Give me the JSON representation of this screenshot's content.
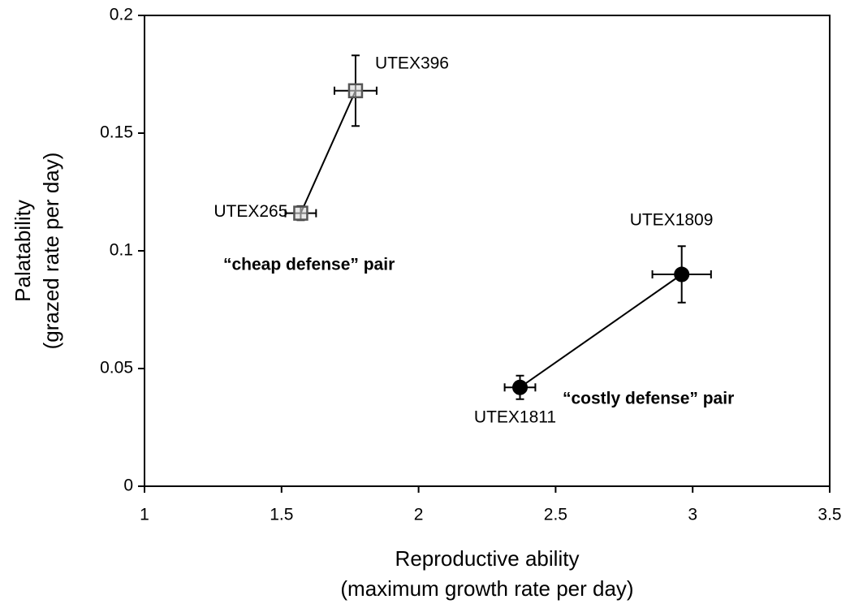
{
  "chart_data": {
    "type": "scatter",
    "xlabel": [
      "Reproductive ability",
      "(maximum growth rate per day)"
    ],
    "ylabel": [
      "Palatability",
      "(grazed rate per day)"
    ],
    "xlim": [
      1,
      3.5
    ],
    "ylim": [
      0,
      0.2
    ],
    "xticks": [
      1,
      1.5,
      2,
      2.5,
      3,
      3.5
    ],
    "yticks": [
      0,
      0.05,
      0.1,
      0.15,
      0.2
    ],
    "grid": false,
    "annotations": [
      "“cheap defense” pair",
      "“costly defense” pair"
    ],
    "series": [
      {
        "marker": "square",
        "color": "#d9d9d9",
        "edge": "#555555",
        "labels": [
          "UTEX265",
          "UTEX396"
        ],
        "x": [
          1.57,
          1.77
        ],
        "xerr": [
          0.056,
          0.077
        ],
        "values": [
          0.116,
          0.168
        ],
        "yerr": [
          0.003,
          0.015
        ]
      },
      {
        "marker": "circle",
        "color": "#000000",
        "edge": "#000000",
        "labels": [
          "UTEX1811",
          "UTEX1809"
        ],
        "x": [
          2.37,
          2.96
        ],
        "xerr": [
          0.056,
          0.107
        ],
        "values": [
          0.042,
          0.09
        ],
        "yerr": [
          0.005,
          0.012
        ]
      }
    ]
  }
}
